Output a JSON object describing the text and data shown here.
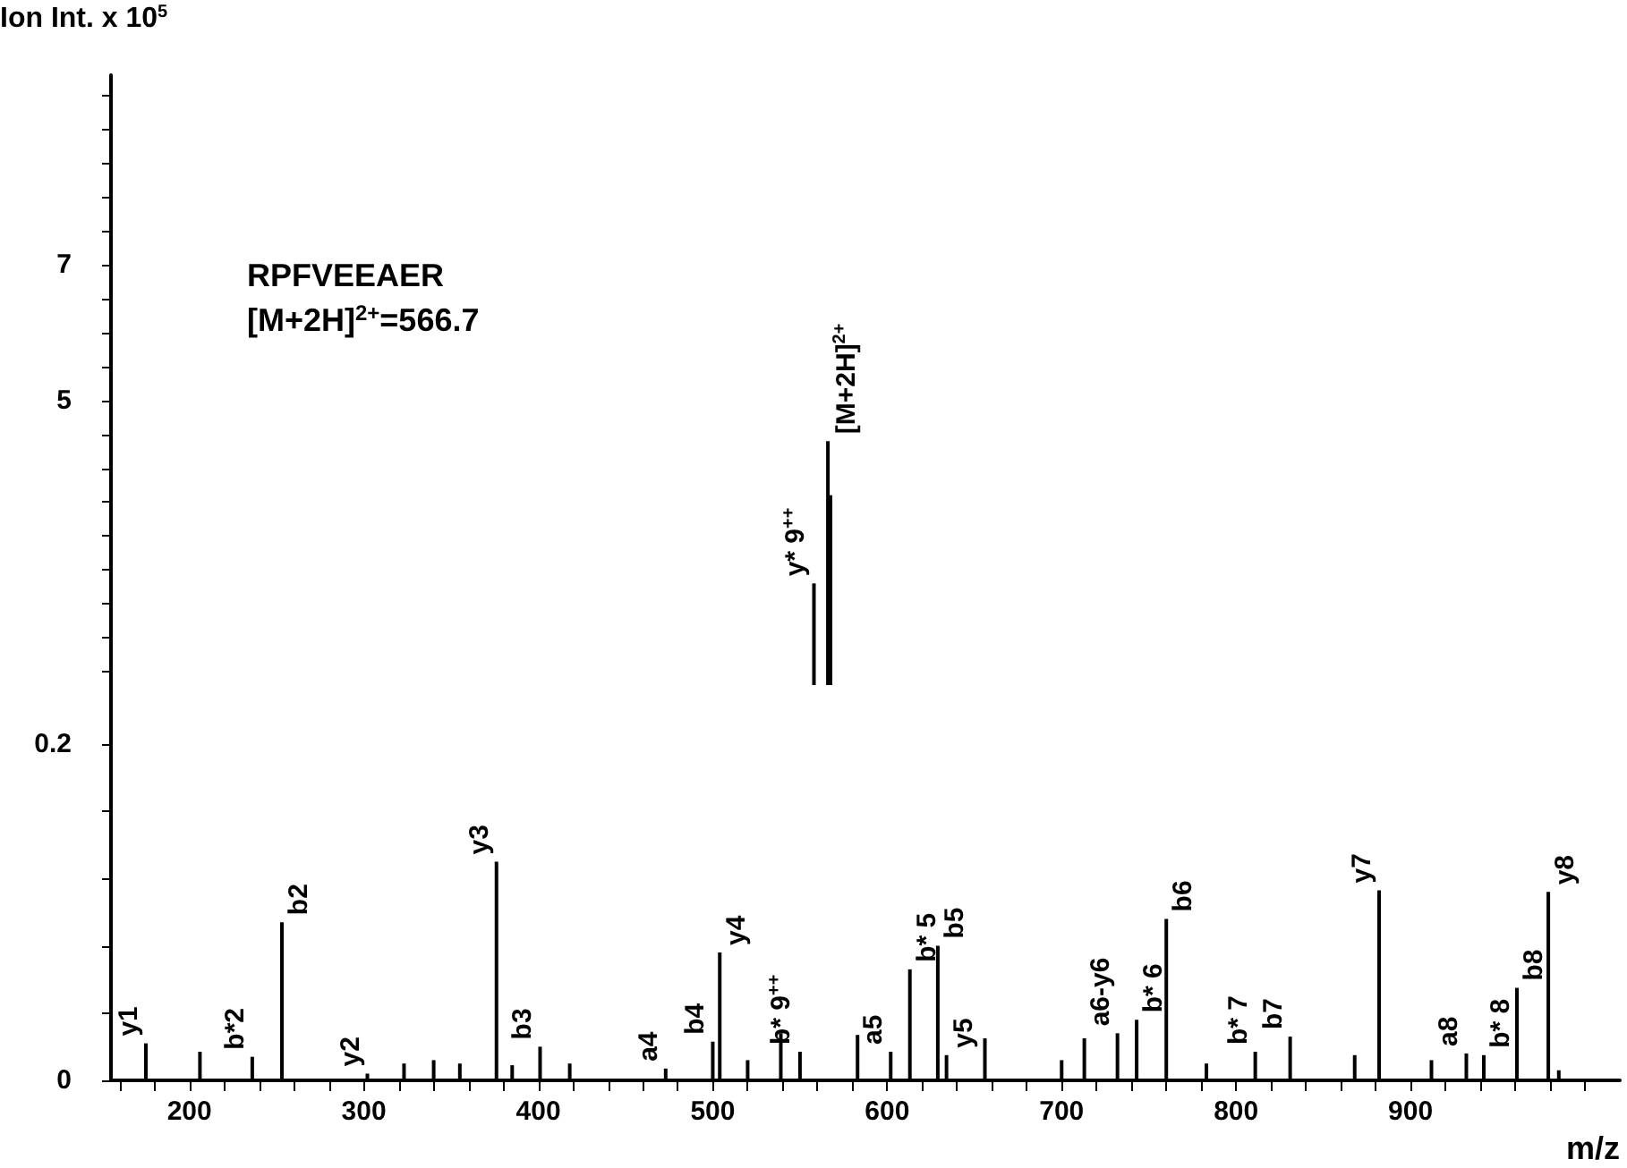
{
  "chart_data": [
    {
      "type": "bar",
      "ylabel": "Ion Int. x 10$^{5}$",
      "color": "#000000",
      "tick_labels": "y",
      "x": [
        558,
        566,
        567.5
      ],
      "values": [
        2.3,
        4.4,
        3.6
      ],
      "xlim": [
        155,
        1020
      ],
      "ylim": [
        0.8,
        9.8
      ],
      "yticks": [
        {
          "value": 1,
          "label": null
        },
        {
          "value": 1.5,
          "label": null
        },
        {
          "value": 2,
          "label": null
        },
        {
          "value": 2.5,
          "label": null
        },
        {
          "value": 3,
          "label": null
        },
        {
          "value": 3.5,
          "label": null
        },
        {
          "value": 4,
          "label": null
        },
        {
          "value": 4.5,
          "label": null
        },
        5,
        {
          "value": 5.5,
          "label": null
        },
        {
          "value": 6,
          "label": null
        },
        {
          "value": 6.5,
          "label": null
        },
        7,
        {
          "value": 7.5,
          "label": null
        },
        {
          "value": 8,
          "label": null
        },
        {
          "value": 8.5,
          "label": null
        },
        {
          "value": 9,
          "label": null
        },
        {
          "value": 9.5,
          "label": null
        }
      ],
      "annotations": [
        "RPFVEEAER",
        "[M+2H]$^{2+}$=566.7",
        {
          "text": "y* 9$^{++}$",
          "x": 558,
          "y": 2.3
        },
        {
          "text": "[M+2H]$^{2+}$",
          "x": 566,
          "y": 4.4
        }
      ]
    },
    {
      "type": "bar",
      "xlabel": "m/z",
      "color": "#000000",
      "x": [
        175,
        206,
        236,
        253,
        302,
        323,
        340,
        355,
        376,
        385,
        401,
        418,
        473,
        500,
        504,
        520,
        539,
        550,
        583,
        602,
        613,
        629,
        634,
        656,
        700,
        713,
        732,
        743,
        760,
        783,
        811,
        831,
        868,
        882,
        912,
        932,
        942,
        961,
        979,
        985
      ],
      "values": [
        0.022,
        0.017,
        0.014,
        0.094,
        0.004,
        0.01,
        0.012,
        0.01,
        0.13,
        0.009,
        0.02,
        0.01,
        0.007,
        0.023,
        0.076,
        0.012,
        0.028,
        0.017,
        0.027,
        0.017,
        0.066,
        0.08,
        0.015,
        0.025,
        0.012,
        0.025,
        0.028,
        0.036,
        0.096,
        0.01,
        0.017,
        0.026,
        0.015,
        0.113,
        0.012,
        0.016,
        0.015,
        0.055,
        0.112,
        0.006
      ],
      "xlim": [
        155,
        1020
      ],
      "ylim": [
        0,
        0.235
      ],
      "xticks": [
        {
          "value": 160,
          "label": null
        },
        {
          "value": 180,
          "label": null
        },
        200,
        {
          "value": 220,
          "label": null
        },
        {
          "value": 240,
          "label": null
        },
        {
          "value": 260,
          "label": null
        },
        {
          "value": 280,
          "label": null
        },
        300,
        {
          "value": 320,
          "label": null
        },
        {
          "value": 340,
          "label": null
        },
        {
          "value": 360,
          "label": null
        },
        {
          "value": 380,
          "label": null
        },
        400,
        {
          "value": 420,
          "label": null
        },
        {
          "value": 440,
          "label": null
        },
        {
          "value": 460,
          "label": null
        },
        {
          "value": 480,
          "label": null
        },
        500,
        {
          "value": 520,
          "label": null
        },
        {
          "value": 540,
          "label": null
        },
        {
          "value": 560,
          "label": null
        },
        {
          "value": 580,
          "label": null
        },
        600,
        {
          "value": 620,
          "label": null
        },
        {
          "value": 640,
          "label": null
        },
        {
          "value": 660,
          "label": null
        },
        {
          "value": 680,
          "label": null
        },
        700,
        {
          "value": 720,
          "label": null
        },
        {
          "value": 740,
          "label": null
        },
        {
          "value": 760,
          "label": null
        },
        {
          "value": 780,
          "label": null
        },
        800,
        {
          "value": 820,
          "label": null
        },
        {
          "value": 840,
          "label": null
        },
        {
          "value": 860,
          "label": null
        },
        {
          "value": 880,
          "label": null
        },
        900,
        {
          "value": 920,
          "label": null
        },
        {
          "value": 940,
          "label": null
        },
        {
          "value": 960,
          "label": null
        },
        {
          "value": 980,
          "label": null
        },
        {
          "value": 1000,
          "label": null
        }
      ],
      "yticks": [
        0,
        {
          "value": 0.04,
          "label": null
        },
        {
          "value": 0.08,
          "label": null
        },
        {
          "value": 0.12,
          "label": null
        },
        {
          "value": 0.16,
          "label": null
        },
        0.2
      ],
      "annotations": [
        {
          "text": "y1",
          "x": 175,
          "y": 0.022
        },
        {
          "text": "b*2",
          "x": 236,
          "y": 0.014
        },
        {
          "text": "b2",
          "x": 253,
          "y": 0.094
        },
        {
          "text": "y2",
          "x": 302,
          "y": 0.004
        },
        {
          "text": "y3",
          "x": 376,
          "y": 0.13
        },
        {
          "text": "b3",
          "x": 401,
          "y": 0.02
        },
        {
          "text": "a4",
          "x": 473,
          "y": 0.007
        },
        {
          "text": "b4",
          "x": 500,
          "y": 0.023
        },
        {
          "text": "y4",
          "x": 504,
          "y": 0.076
        },
        {
          "text": "b* 9$^{++}$",
          "x": 550,
          "y": 0.017
        },
        {
          "text": "a5",
          "x": 602,
          "y": 0.017
        },
        {
          "text": "b* 5",
          "x": 613,
          "y": 0.066
        },
        {
          "text": "b5",
          "x": 629,
          "y": 0.08
        },
        {
          "text": "y5",
          "x": 634,
          "y": 0.015
        },
        {
          "text": "a6-y6",
          "x": 732,
          "y": 0.028
        },
        {
          "text": "b* 6",
          "x": 743,
          "y": 0.036
        },
        {
          "text": "b6",
          "x": 760,
          "y": 0.096
        },
        {
          "text": "b* 7",
          "x": 811,
          "y": 0.017
        },
        {
          "text": "b7",
          "x": 831,
          "y": 0.026
        },
        {
          "text": "y7",
          "x": 882,
          "y": 0.113
        },
        {
          "text": "a8",
          "x": 932,
          "y": 0.016
        },
        {
          "text": "b* 8",
          "x": 942,
          "y": 0.015
        },
        {
          "text": "b8",
          "x": 961,
          "y": 0.055
        },
        {
          "text": "y8",
          "x": 979,
          "y": 0.112
        }
      ]
    }
  ]
}
